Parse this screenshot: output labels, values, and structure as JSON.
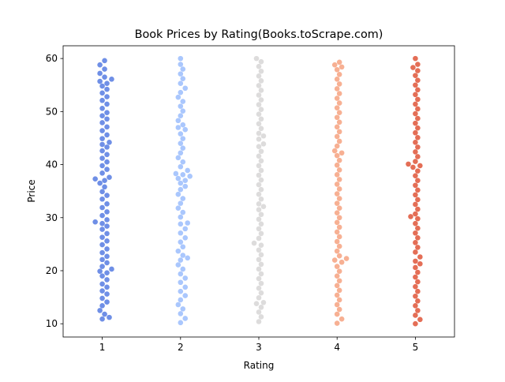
{
  "chart_data": {
    "type": "swarm",
    "title": "Book Prices by Rating(Books.toScrape.com)",
    "xlabel": "Rating",
    "ylabel": "Price",
    "categories": [
      "1",
      "2",
      "3",
      "4",
      "5"
    ],
    "colors": [
      "#6f8fe6",
      "#aac7fd",
      "#dddcdc",
      "#f7b093",
      "#e46e56"
    ],
    "ylim": [
      7.5,
      62.4
    ],
    "yticks": [
      10,
      20,
      30,
      40,
      50,
      60
    ],
    "values": [
      [
        10.9,
        11.2,
        11.8,
        12.5,
        13.4,
        14.1,
        14.8,
        15.6,
        16.2,
        16.9,
        17.5,
        18.3,
        19.0,
        19.6,
        19.9,
        20.3,
        20.8,
        21.5,
        22.1,
        22.7,
        23.4,
        24.1,
        24.9,
        25.6,
        26.3,
        27.0,
        27.8,
        28.4,
        28.9,
        29.2,
        29.6,
        30.4,
        31.1,
        31.9,
        32.6,
        33.5,
        34.2,
        34.9,
        35.8,
        36.5,
        37.0,
        37.3,
        37.6,
        38.4,
        39.1,
        39.8,
        40.5,
        41.2,
        41.9,
        42.6,
        43.3,
        43.8,
        44.2,
        44.9,
        45.6,
        46.4,
        47.1,
        47.9,
        48.6,
        49.2,
        49.8,
        50.6,
        51.4,
        52.1,
        52.8,
        53.5,
        54.2,
        54.8,
        55.3,
        55.7,
        56.1,
        56.5,
        57.2,
        58.0,
        58.8,
        59.6
      ],
      [
        10.2,
        11.0,
        11.9,
        12.8,
        13.6,
        14.5,
        15.3,
        16.1,
        16.9,
        17.8,
        18.6,
        19.4,
        20.3,
        21.1,
        22.0,
        22.4,
        22.9,
        23.7,
        24.5,
        25.4,
        26.2,
        27.1,
        27.9,
        28.8,
        29.0,
        30.1,
        31.0,
        31.8,
        32.7,
        33.6,
        34.4,
        35.3,
        35.9,
        36.5,
        37.0,
        37.4,
        37.8,
        38.1,
        38.3,
        38.9,
        39.6,
        40.5,
        41.3,
        42.2,
        43.1,
        44.0,
        44.9,
        45.8,
        46.6,
        47.0,
        47.5,
        48.3,
        49.2,
        50.1,
        51.0,
        51.9,
        52.7,
        53.6,
        54.4,
        55.3,
        56.2,
        57.1,
        58.0,
        58.9,
        60.0
      ],
      [
        10.4,
        11.3,
        12.2,
        13.1,
        13.8,
        14.0,
        14.9,
        15.8,
        16.7,
        17.6,
        18.5,
        19.4,
        20.3,
        21.2,
        22.1,
        23.0,
        23.9,
        24.8,
        25.2,
        26.1,
        27.0,
        27.9,
        28.8,
        29.7,
        30.6,
        31.5,
        32.1,
        32.6,
        33.5,
        34.4,
        35.3,
        36.2,
        37.1,
        38.0,
        38.9,
        39.8,
        40.7,
        41.6,
        42.5,
        43.4,
        43.9,
        44.8,
        45.4,
        45.9,
        46.8,
        47.7,
        48.6,
        49.5,
        50.4,
        51.3,
        52.2,
        53.1,
        54.0,
        54.9,
        55.8,
        56.7,
        57.6,
        58.5,
        59.4,
        60.0
      ],
      [
        10.1,
        10.9,
        11.8,
        12.7,
        13.6,
        14.5,
        15.4,
        16.3,
        17.2,
        18.1,
        19.0,
        19.9,
        20.8,
        21.6,
        22.0,
        22.3,
        22.8,
        23.7,
        24.6,
        25.5,
        26.4,
        27.3,
        28.2,
        29.1,
        30.0,
        30.9,
        31.8,
        32.7,
        33.6,
        34.5,
        35.4,
        36.3,
        37.2,
        38.1,
        39.0,
        39.9,
        40.8,
        41.7,
        42.2,
        42.6,
        43.5,
        44.4,
        45.3,
        46.2,
        47.1,
        48.0,
        48.9,
        49.8,
        50.7,
        51.6,
        52.5,
        53.4,
        54.3,
        55.2,
        56.1,
        57.0,
        57.9,
        58.4,
        58.8,
        59.3
      ],
      [
        10.0,
        10.8,
        11.6,
        12.5,
        13.4,
        14.3,
        15.2,
        16.1,
        17.0,
        17.9,
        18.8,
        19.7,
        20.6,
        21.3,
        21.8,
        22.6,
        23.5,
        24.4,
        25.3,
        26.2,
        27.1,
        28.0,
        28.9,
        29.8,
        30.2,
        30.7,
        31.6,
        32.5,
        33.4,
        34.3,
        35.2,
        36.1,
        37.0,
        37.9,
        38.8,
        39.5,
        39.8,
        40.1,
        40.6,
        41.5,
        42.4,
        43.3,
        44.2,
        45.1,
        46.0,
        46.9,
        47.8,
        48.7,
        49.6,
        50.5,
        51.4,
        52.3,
        53.2,
        54.1,
        55.0,
        55.9,
        56.8,
        57.7,
        58.3,
        58.9,
        60.0
      ]
    ]
  }
}
